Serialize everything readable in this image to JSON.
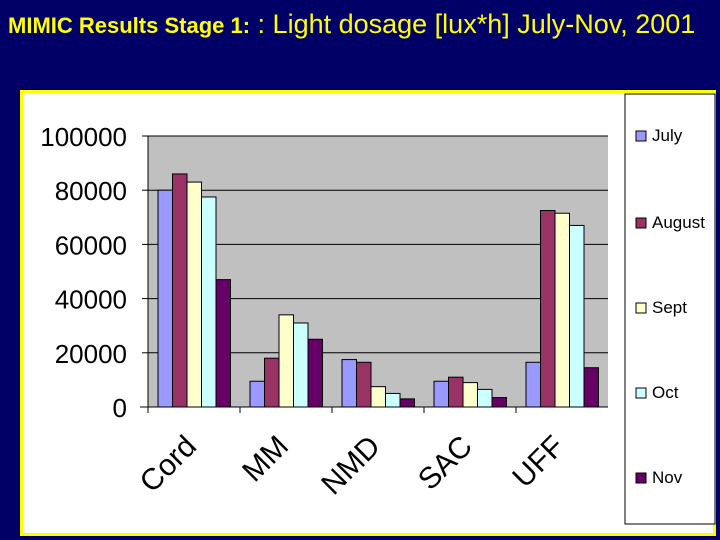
{
  "slide": {
    "title_bold": "MIMIC Results Stage 1:",
    "title_rest": " :  Light dosage [lux*h] July-Nov,  2001"
  },
  "colors": {
    "background": "#000066",
    "title": "#ffff00",
    "plot_area": "#c0c0c0",
    "border": "#ffff00"
  },
  "chart_data": {
    "type": "bar",
    "title": "Light dosage [lux*h] July-Nov, 2001",
    "categories": [
      "Cord",
      "MM",
      "NMD",
      "SAC",
      "UFF"
    ],
    "series": [
      {
        "name": "July",
        "color": "#9999ff",
        "values": [
          80000,
          9500,
          17500,
          9500,
          16500
        ]
      },
      {
        "name": "August",
        "color": "#993366",
        "values": [
          86000,
          18000,
          16500,
          11000,
          72500
        ]
      },
      {
        "name": "Sept",
        "color": "#ffffcc",
        "values": [
          83000,
          34000,
          7500,
          9000,
          71500
        ]
      },
      {
        "name": "Oct",
        "color": "#ccffff",
        "values": [
          77500,
          31000,
          5000,
          6500,
          67000
        ]
      },
      {
        "name": "Nov",
        "color": "#660066",
        "values": [
          47000,
          25000,
          3000,
          3500,
          14500
        ]
      }
    ],
    "ylim": [
      0,
      100000
    ],
    "yticks": [
      "100000",
      "80000",
      "60000",
      "40000",
      "20000",
      "0"
    ],
    "grid": true,
    "legend_position": "right"
  }
}
